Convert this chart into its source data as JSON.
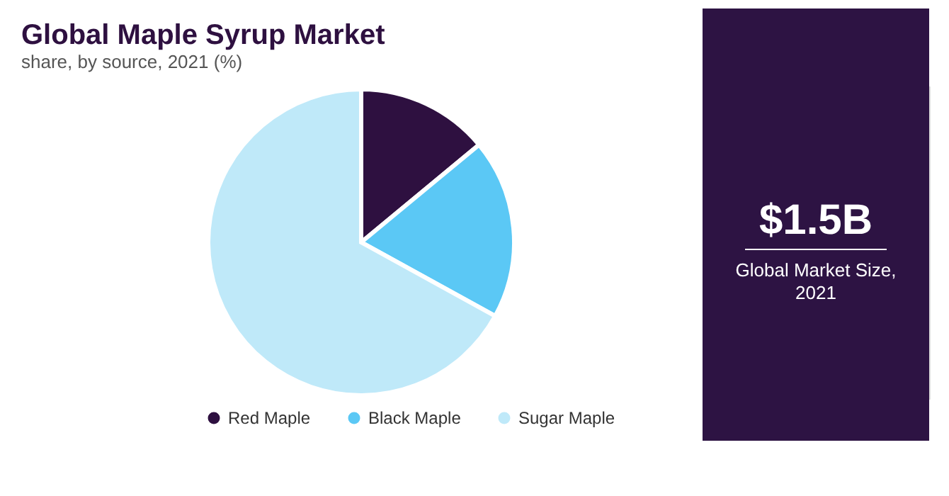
{
  "chart_data": [
    {
      "type": "pie",
      "title": "Global Maple Syrup Market",
      "subtitle": "share, by source, 2021 (%)",
      "categories": [
        "Red Maple",
        "Black Maple",
        "Sugar Maple"
      ],
      "values": [
        14,
        19,
        67
      ],
      "colors": [
        "#2e1040",
        "#5bc8f5",
        "#bfe9f9"
      ],
      "legend": "bottom"
    },
    {
      "type": "other",
      "title": "$1.5B",
      "subtitle": "Global Market Size, 2021"
    }
  ]
}
